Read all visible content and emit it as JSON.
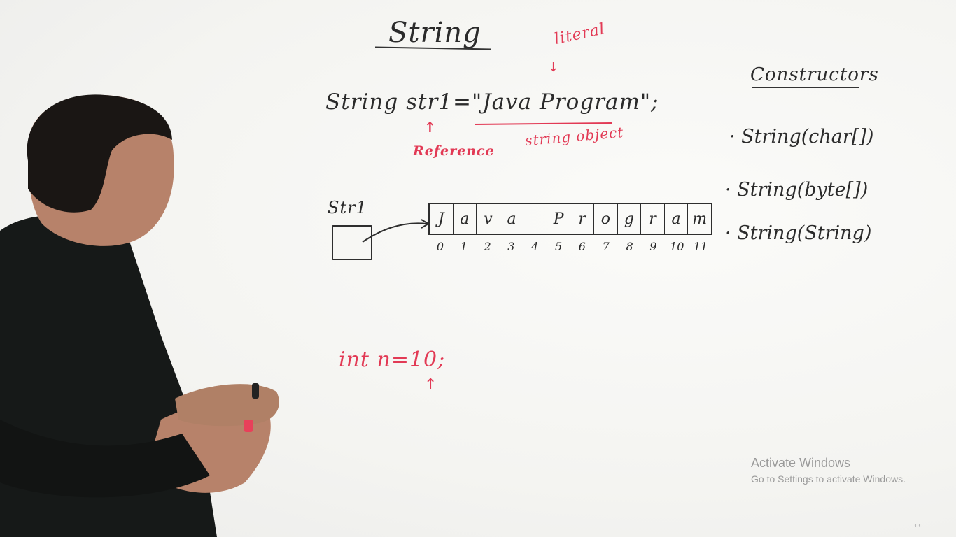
{
  "board": {
    "title": "String",
    "declaration": "String str1=\"Java Program\";",
    "annotation_literal": "literal",
    "annotation_string_object": "string object",
    "annotation_reference": "Reference",
    "constructors": {
      "heading": "Constructors",
      "items": [
        "String(char[])",
        "String(byte[])",
        "String(String)"
      ]
    },
    "array_diagram": {
      "ref_label": "Str1",
      "cells": [
        "J",
        "a",
        "v",
        "a",
        "",
        "P",
        "r",
        "o",
        "g",
        "r",
        "a",
        "m"
      ],
      "indices": [
        "0",
        "1",
        "2",
        "3",
        "4",
        "5",
        "6",
        "7",
        "8",
        "9",
        "10",
        "11"
      ]
    },
    "int_example": "int n=10;"
  },
  "overlay": {
    "activate_title": "Activate Windows",
    "activate_subtitle": "Go to Settings to activate Windows."
  },
  "colors": {
    "marker_black": "#2b2b2b",
    "marker_red": "#e23a55",
    "board_bg": "#f6f6f4",
    "shirt": "#161918",
    "skin": "#b7826a"
  }
}
